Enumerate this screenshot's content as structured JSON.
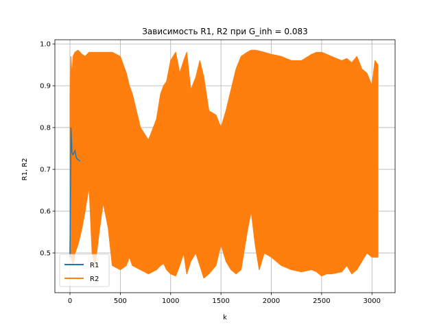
{
  "chart_data": {
    "type": "line",
    "title": "Зависимость R1, R2 при G_inh = 0.083",
    "xlabel": "k",
    "ylabel": "R1, R2",
    "xlim": [
      -150,
      3230
    ],
    "ylim": [
      0.405,
      1.01
    ],
    "x_ticks": [
      0,
      500,
      1000,
      1500,
      2000,
      2500,
      3000
    ],
    "y_ticks": [
      0.5,
      0.6,
      0.7,
      0.8,
      0.9,
      1.0
    ],
    "x_tick_labels": [
      "0",
      "500",
      "1000",
      "1500",
      "2000",
      "2500",
      "3000"
    ],
    "y_tick_labels": [
      "0.5",
      "0.6",
      "0.7",
      "0.8",
      "0.9",
      "1.0"
    ],
    "grid": true,
    "legend": "lower-left",
    "series": [
      {
        "name": "R1",
        "color": "#1f77b4",
        "x": [
          0,
          10,
          20,
          30,
          40,
          50,
          60,
          70,
          100,
          300,
          500,
          930,
          960,
          1000,
          1500,
          2000,
          2500,
          3000,
          3060
        ],
        "values": [
          0.49,
          0.8,
          0.74,
          0.735,
          0.74,
          0.745,
          0.73,
          0.725,
          0.72,
          0.72,
          0.72,
          0.725,
          0.755,
          0.72,
          0.72,
          0.72,
          0.72,
          0.72,
          0.72
        ]
      },
      {
        "name": "R2",
        "color": "#ff7f0e",
        "envelope_x": [
          0,
          10,
          20,
          30,
          50,
          80,
          120,
          150,
          190,
          220,
          250,
          290,
          330,
          380,
          420,
          500,
          560,
          590,
          620,
          700,
          780,
          860,
          900,
          930,
          960,
          1000,
          1050,
          1090,
          1130,
          1160,
          1200,
          1250,
          1290,
          1330,
          1380,
          1450,
          1500,
          1550,
          1600,
          1650,
          1700,
          1760,
          1800,
          1840,
          1880,
          1930,
          2000,
          2100,
          2200,
          2300,
          2400,
          2450,
          2500,
          2550,
          2600,
          2700,
          2750,
          2800,
          2850,
          2900,
          2950,
          3000,
          3030,
          3060
        ],
        "upper": [
          0.88,
          0.97,
          0.92,
          0.97,
          0.98,
          0.985,
          0.975,
          0.97,
          0.98,
          0.98,
          0.98,
          0.98,
          0.98,
          0.98,
          0.98,
          0.97,
          0.93,
          0.9,
          0.88,
          0.8,
          0.77,
          0.82,
          0.88,
          0.9,
          0.91,
          0.96,
          0.98,
          0.93,
          0.96,
          0.98,
          0.89,
          0.92,
          0.96,
          0.92,
          0.84,
          0.83,
          0.8,
          0.84,
          0.89,
          0.94,
          0.97,
          0.98,
          0.985,
          0.985,
          0.983,
          0.98,
          0.975,
          0.97,
          0.96,
          0.96,
          0.975,
          0.98,
          0.98,
          0.975,
          0.97,
          0.96,
          0.965,
          0.955,
          0.97,
          0.94,
          0.93,
          0.9,
          0.96,
          0.95
        ],
        "lower": [
          0.5,
          0.49,
          0.48,
          0.47,
          0.5,
          0.52,
          0.56,
          0.6,
          0.66,
          0.5,
          0.47,
          0.55,
          0.62,
          0.56,
          0.47,
          0.46,
          0.47,
          0.49,
          0.47,
          0.46,
          0.45,
          0.46,
          0.47,
          0.475,
          0.46,
          0.45,
          0.445,
          0.47,
          0.5,
          0.45,
          0.48,
          0.5,
          0.47,
          0.44,
          0.45,
          0.47,
          0.52,
          0.48,
          0.46,
          0.45,
          0.46,
          0.55,
          0.6,
          0.52,
          0.46,
          0.5,
          0.49,
          0.47,
          0.46,
          0.455,
          0.46,
          0.455,
          0.445,
          0.45,
          0.45,
          0.455,
          0.47,
          0.45,
          0.46,
          0.48,
          0.5,
          0.49,
          0.49,
          0.49
        ]
      }
    ]
  }
}
